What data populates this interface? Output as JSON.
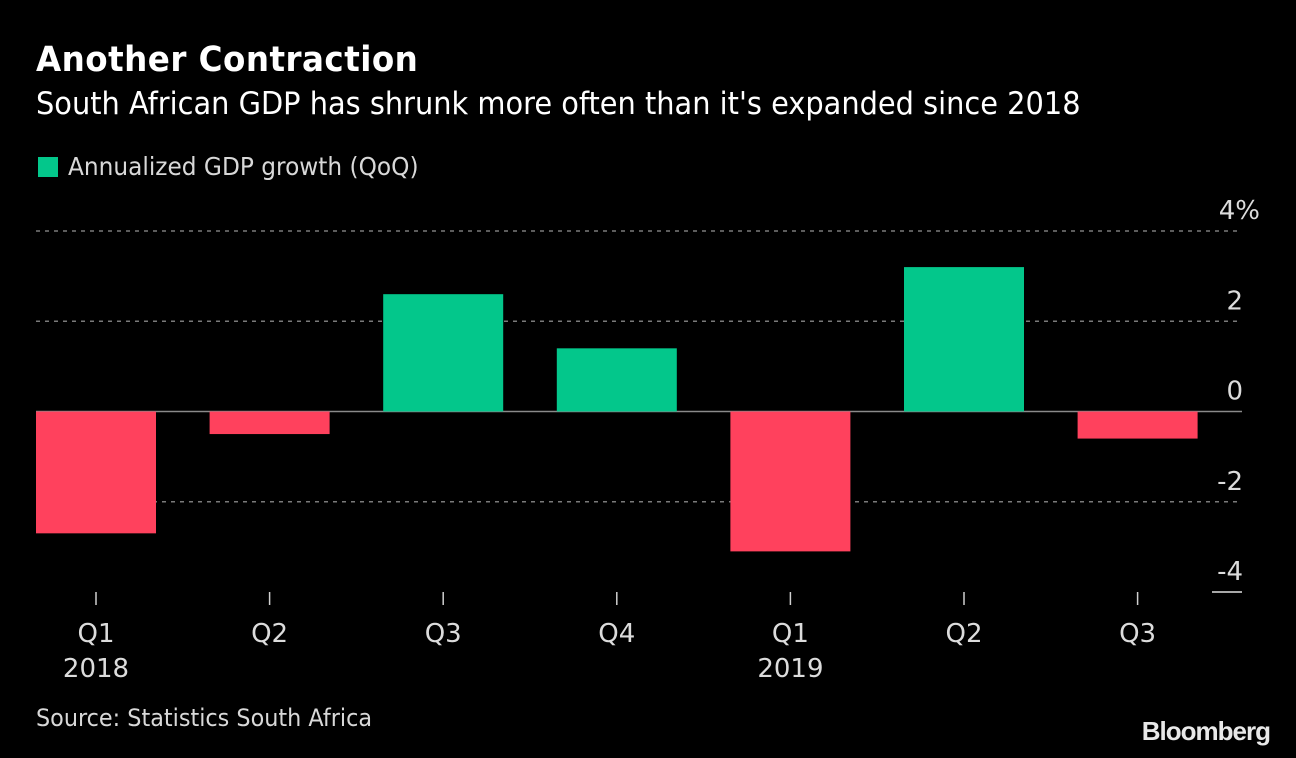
{
  "header": {
    "title": "Another Contraction",
    "subtitle": "South African GDP has shrunk more often than it's expanded since 2018"
  },
  "footer": {
    "source": "Source: Statistics South Africa",
    "brand": "Bloomberg"
  },
  "colors": {
    "background": "#000000",
    "positive": "#03c78b",
    "negative": "#ff415d",
    "gridline": "#7a7a7a",
    "zero_line": "#8a8a8a",
    "text": "#dcdcdc"
  },
  "chart_data": {
    "type": "bar",
    "title": "Another Contraction",
    "subtitle": "South African GDP has shrunk more often than it's expanded since 2018",
    "legend": [
      {
        "label": "Annualized GDP growth (QoQ)",
        "color": "#03c78b"
      }
    ],
    "legend_position": "top-left",
    "categories": [
      "Q1 2018",
      "Q2 2018",
      "Q3 2018",
      "Q4 2018",
      "Q1 2019",
      "Q2 2019",
      "Q3 2019"
    ],
    "x_tick_labels": [
      {
        "quarter": "Q1",
        "year": "2018"
      },
      {
        "quarter": "Q2",
        "year": ""
      },
      {
        "quarter": "Q3",
        "year": ""
      },
      {
        "quarter": "Q4",
        "year": ""
      },
      {
        "quarter": "Q1",
        "year": "2019"
      },
      {
        "quarter": "Q2",
        "year": ""
      },
      {
        "quarter": "Q3",
        "year": ""
      }
    ],
    "series": [
      {
        "name": "Annualized GDP growth (QoQ)",
        "values": [
          -2.7,
          -0.5,
          2.6,
          1.4,
          -3.1,
          3.2,
          -0.6
        ]
      }
    ],
    "ylim": [
      -4,
      4
    ],
    "y_ticks": [
      4,
      2,
      0,
      -2,
      -4
    ],
    "y_tick_labels": [
      "4%",
      "2",
      "0",
      "-2",
      "-4"
    ],
    "y_axis_position": "right",
    "grid": true,
    "xlabel": "",
    "ylabel": "",
    "source": "Source: Statistics South Africa"
  }
}
